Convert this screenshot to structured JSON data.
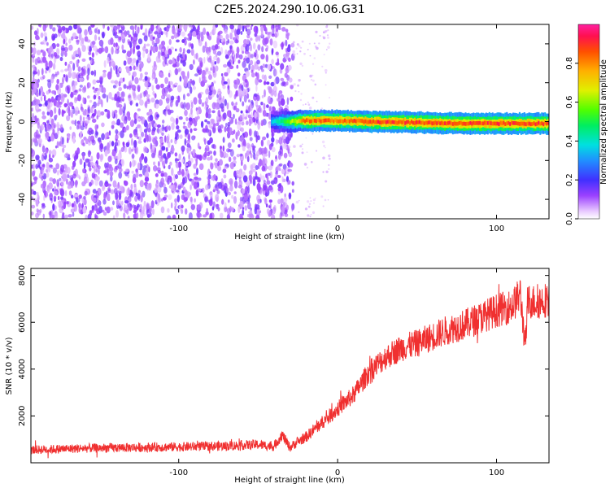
{
  "title": "C2E5.2024.290.10.06.G31",
  "chart_data": [
    {
      "type": "heatmap",
      "xlabel": "Height of straight line (km)",
      "ylabel": "Frequency (Hz)",
      "xlim": [
        -193,
        133
      ],
      "ylim": [
        -50,
        50
      ],
      "xticks": [
        -100,
        0,
        100
      ],
      "yticks": [
        -40,
        -20,
        0,
        20,
        40
      ],
      "colorbar": {
        "label": "Normalized spectral amplitude",
        "range": [
          0,
          1
        ],
        "ticks": [
          0.0,
          0.2,
          0.4,
          0.6,
          0.8
        ]
      },
      "signal_track": [
        {
          "x": -42,
          "y": 0,
          "amp": 0.35
        },
        {
          "x": -30,
          "y": 0,
          "amp": 0.6
        },
        {
          "x": -20,
          "y": 0.5,
          "amp": 0.85
        },
        {
          "x": 0,
          "y": 0.5,
          "amp": 0.85
        },
        {
          "x": 20,
          "y": 0,
          "amp": 0.9
        },
        {
          "x": 50,
          "y": -0.5,
          "amp": 0.9
        },
        {
          "x": 80,
          "y": -1,
          "amp": 0.9
        },
        {
          "x": 110,
          "y": -1,
          "amp": 0.9
        },
        {
          "x": 133,
          "y": -1,
          "amp": 0.9
        }
      ],
      "noise_region_x": [
        -193,
        -28
      ],
      "grid": false
    },
    {
      "type": "line",
      "xlabel": "Height of straight line (km)",
      "ylabel": "SNR (10 * v/v)",
      "xlim": [
        -193,
        133
      ],
      "ylim": [
        0,
        8300
      ],
      "xticks": [
        -100,
        0,
        100
      ],
      "yticks": [
        2000,
        4000,
        6000,
        8000
      ],
      "color": "#f03030",
      "series": [
        {
          "x": [
            -193,
            -160,
            -130,
            -100,
            -70,
            -50,
            -40,
            -35,
            -30,
            -25,
            -20,
            -10,
            0,
            10,
            20,
            30,
            40,
            50,
            60,
            70,
            80,
            90,
            100,
            110,
            115,
            118,
            120,
            125,
            133
          ],
          "y": [
            550,
            620,
            650,
            680,
            720,
            780,
            700,
            1200,
            650,
            900,
            1100,
            1700,
            2300,
            2900,
            3900,
            4500,
            4900,
            5100,
            5400,
            5700,
            5900,
            6200,
            6500,
            6700,
            7200,
            5000,
            6900,
            6850,
            7000
          ]
        }
      ],
      "grid": false
    }
  ]
}
